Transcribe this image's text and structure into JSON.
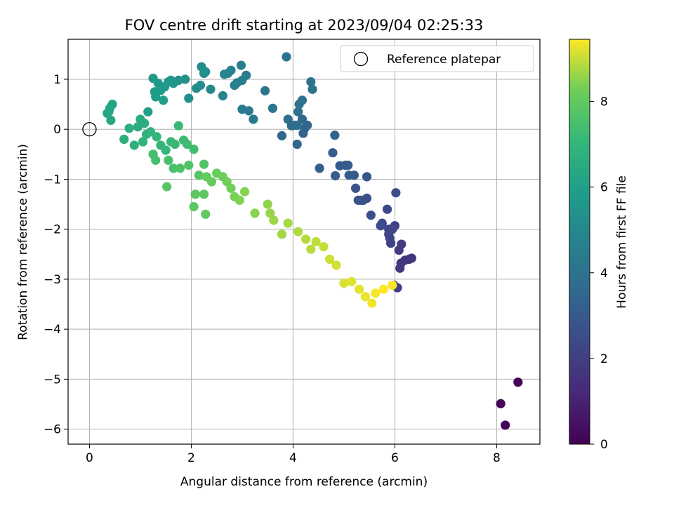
{
  "chart_data": {
    "type": "scatter",
    "title": "FOV centre drift starting at 2023/09/04 02:25:33",
    "xlabel": "Angular distance from reference (arcmin)",
    "ylabel": "Rotation from reference (arcmin)",
    "xlim": [
      -0.42,
      8.85
    ],
    "ylim": [
      -6.3,
      1.8
    ],
    "xticks": [
      0,
      2,
      4,
      6,
      8
    ],
    "yticks": [
      1,
      0,
      -1,
      -2,
      -3,
      -4,
      -5,
      -6
    ],
    "grid": true,
    "colormap": "viridis",
    "colorbar": {
      "label": "Hours from first FF file",
      "range": [
        0,
        9.45
      ],
      "ticks": [
        0,
        2,
        4,
        6,
        8
      ]
    },
    "legend": {
      "location": "top-right",
      "entries": [
        "Reference platepar"
      ]
    },
    "reference_point": {
      "x": 0,
      "y": 0
    },
    "points": [
      [
        8.42,
        -5.06,
        0.05
      ],
      [
        8.08,
        -5.49,
        0.1
      ],
      [
        8.17,
        -5.92,
        0.15
      ],
      [
        6.33,
        -2.58,
        1.6
      ],
      [
        6.28,
        -2.6,
        1.65
      ],
      [
        6.2,
        -2.62,
        1.7
      ],
      [
        6.12,
        -2.68,
        1.75
      ],
      [
        6.1,
        -2.78,
        1.8
      ],
      [
        6.13,
        -2.3,
        1.85
      ],
      [
        6.08,
        -2.42,
        1.9
      ],
      [
        6.05,
        -3.17,
        1.95
      ],
      [
        5.98,
        -3.12,
        2.0
      ],
      [
        6.0,
        -1.93,
        2.05
      ],
      [
        5.92,
        -2.28,
        2.1
      ],
      [
        5.9,
        -2.18,
        2.15
      ],
      [
        5.88,
        -2.1,
        2.2
      ],
      [
        5.88,
        -2.0,
        2.25
      ],
      [
        5.95,
        -2.0,
        2.3
      ],
      [
        5.85,
        -1.6,
        2.35
      ],
      [
        5.72,
        -1.93,
        2.4
      ],
      [
        5.75,
        -1.88,
        2.45
      ],
      [
        6.02,
        -1.27,
        2.5
      ],
      [
        5.53,
        -1.72,
        2.55
      ],
      [
        5.45,
        -1.38,
        2.6
      ],
      [
        5.38,
        -1.42,
        2.65
      ],
      [
        5.33,
        -1.42,
        2.7
      ],
      [
        5.28,
        -1.42,
        2.75
      ],
      [
        5.23,
        -1.18,
        2.8
      ],
      [
        5.45,
        -0.95,
        2.85
      ],
      [
        5.2,
        -0.92,
        2.9
      ],
      [
        5.03,
        -0.72,
        2.95
      ],
      [
        4.92,
        -0.73,
        3.0
      ],
      [
        5.08,
        -0.72,
        3.05
      ],
      [
        5.1,
        -0.92,
        3.1
      ],
      [
        4.83,
        -0.93,
        3.15
      ],
      [
        4.78,
        -0.47,
        3.2
      ],
      [
        4.52,
        -0.78,
        3.25
      ],
      [
        4.82,
        -0.12,
        3.3
      ],
      [
        4.2,
        -0.08,
        3.35
      ],
      [
        4.23,
        0.02,
        3.4
      ],
      [
        4.28,
        0.08,
        3.45
      ],
      [
        4.18,
        0.2,
        3.5
      ],
      [
        4.08,
        -0.3,
        3.55
      ],
      [
        3.78,
        -0.13,
        3.6
      ],
      [
        3.97,
        0.07,
        3.65
      ],
      [
        4.03,
        0.08,
        3.7
      ],
      [
        4.08,
        0.08,
        3.75
      ],
      [
        3.9,
        0.2,
        3.8
      ],
      [
        4.1,
        0.35,
        3.85
      ],
      [
        4.12,
        0.5,
        3.9
      ],
      [
        4.18,
        0.58,
        3.95
      ],
      [
        4.35,
        0.95,
        4.0
      ],
      [
        4.38,
        0.8,
        4.05
      ],
      [
        3.87,
        1.45,
        4.1
      ],
      [
        3.45,
        0.77,
        4.15
      ],
      [
        3.6,
        0.42,
        4.2
      ],
      [
        3.13,
        0.37,
        4.3
      ],
      [
        3.22,
        0.2,
        4.35
      ],
      [
        3.08,
        1.08,
        4.4
      ],
      [
        3.0,
        0.4,
        4.45
      ],
      [
        3.0,
        0.98,
        4.5
      ],
      [
        2.98,
        1.28,
        4.55
      ],
      [
        2.9,
        0.93,
        4.6
      ],
      [
        2.85,
        0.88,
        4.65
      ],
      [
        2.78,
        1.18,
        4.7
      ],
      [
        2.72,
        1.12,
        4.75
      ],
      [
        2.65,
        1.1,
        4.8
      ],
      [
        2.62,
        0.67,
        4.9
      ],
      [
        2.38,
        0.8,
        5.0
      ],
      [
        2.25,
        1.12,
        5.05
      ],
      [
        2.2,
        1.25,
        5.1
      ],
      [
        2.18,
        0.88,
        5.15
      ],
      [
        2.1,
        0.82,
        5.2
      ],
      [
        1.95,
        0.62,
        5.3
      ],
      [
        2.28,
        1.15,
        5.35
      ],
      [
        1.88,
        1.0,
        5.4
      ],
      [
        1.75,
        0.98,
        5.45
      ],
      [
        1.65,
        0.92,
        5.5
      ],
      [
        1.6,
        0.98,
        5.55
      ],
      [
        1.55,
        0.95,
        5.6
      ],
      [
        1.48,
        0.85,
        5.65
      ],
      [
        1.35,
        0.92,
        5.7
      ],
      [
        1.4,
        0.78,
        5.75
      ],
      [
        1.25,
        1.02,
        5.8
      ],
      [
        1.28,
        0.75,
        5.85
      ],
      [
        1.3,
        0.65,
        5.9
      ],
      [
        1.45,
        0.58,
        5.95
      ],
      [
        1.15,
        0.35,
        6.05
      ],
      [
        0.45,
        0.5,
        6.1
      ],
      [
        0.4,
        0.42,
        6.15
      ],
      [
        0.35,
        0.32,
        6.2
      ],
      [
        0.42,
        0.18,
        6.3
      ],
      [
        0.38,
        0.35,
        6.35
      ],
      [
        1.0,
        0.2,
        6.5
      ],
      [
        1.08,
        0.12,
        6.55
      ],
      [
        0.95,
        0.05,
        6.6
      ],
      [
        0.78,
        0.02,
        6.65
      ],
      [
        0.68,
        -0.2,
        6.7
      ],
      [
        0.88,
        -0.32,
        6.75
      ],
      [
        1.12,
        -0.1,
        6.8
      ],
      [
        1.05,
        -0.25,
        6.85
      ],
      [
        1.2,
        -0.05,
        6.9
      ],
      [
        1.32,
        -0.15,
        6.95
      ],
      [
        1.4,
        -0.32,
        7.0
      ],
      [
        1.5,
        -0.42,
        7.05
      ],
      [
        1.6,
        -0.25,
        7.1
      ],
      [
        1.75,
        0.07,
        7.15
      ],
      [
        1.68,
        -0.3,
        7.2
      ],
      [
        1.85,
        -0.22,
        7.25
      ],
      [
        1.92,
        -0.3,
        7.3
      ],
      [
        2.05,
        -0.4,
        7.35
      ],
      [
        1.25,
        -0.5,
        7.4
      ],
      [
        1.3,
        -0.62,
        7.45
      ],
      [
        1.55,
        -0.62,
        7.5
      ],
      [
        1.65,
        -0.78,
        7.55
      ],
      [
        1.78,
        -0.78,
        7.6
      ],
      [
        1.95,
        -0.72,
        7.65
      ],
      [
        2.25,
        -0.7,
        7.7
      ],
      [
        2.15,
        -0.92,
        7.75
      ],
      [
        1.52,
        -1.15,
        7.8
      ],
      [
        2.08,
        -1.3,
        7.85
      ],
      [
        2.05,
        -1.55,
        7.9
      ],
      [
        2.25,
        -1.3,
        7.95
      ],
      [
        2.28,
        -1.7,
        8.0
      ],
      [
        2.3,
        -0.95,
        8.05
      ],
      [
        2.4,
        -1.05,
        8.1
      ],
      [
        2.5,
        -0.88,
        8.15
      ],
      [
        2.62,
        -0.95,
        8.2
      ],
      [
        2.7,
        -1.05,
        8.25
      ],
      [
        2.78,
        -1.18,
        8.3
      ],
      [
        2.85,
        -1.35,
        8.35
      ],
      [
        2.95,
        -1.42,
        8.4
      ],
      [
        3.05,
        -1.25,
        8.45
      ],
      [
        3.25,
        -1.68,
        8.5
      ],
      [
        3.5,
        -1.5,
        8.55
      ],
      [
        3.55,
        -1.68,
        8.6
      ],
      [
        3.62,
        -1.82,
        8.65
      ],
      [
        3.78,
        -2.1,
        8.7
      ],
      [
        3.9,
        -1.88,
        8.75
      ],
      [
        4.1,
        -2.05,
        8.8
      ],
      [
        4.25,
        -2.2,
        8.85
      ],
      [
        4.35,
        -2.4,
        8.9
      ],
      [
        4.45,
        -2.25,
        8.95
      ],
      [
        4.6,
        -2.35,
        9.0
      ],
      [
        4.72,
        -2.6,
        9.05
      ],
      [
        4.85,
        -2.72,
        9.1
      ],
      [
        5.0,
        -3.08,
        9.15
      ],
      [
        5.15,
        -3.05,
        9.2
      ],
      [
        5.3,
        -3.2,
        9.25
      ],
      [
        5.42,
        -3.35,
        9.3
      ],
      [
        5.55,
        -3.48,
        9.35
      ],
      [
        5.62,
        -3.28,
        9.4
      ],
      [
        5.78,
        -3.2,
        9.45
      ],
      [
        5.95,
        -3.12,
        9.4
      ]
    ]
  }
}
